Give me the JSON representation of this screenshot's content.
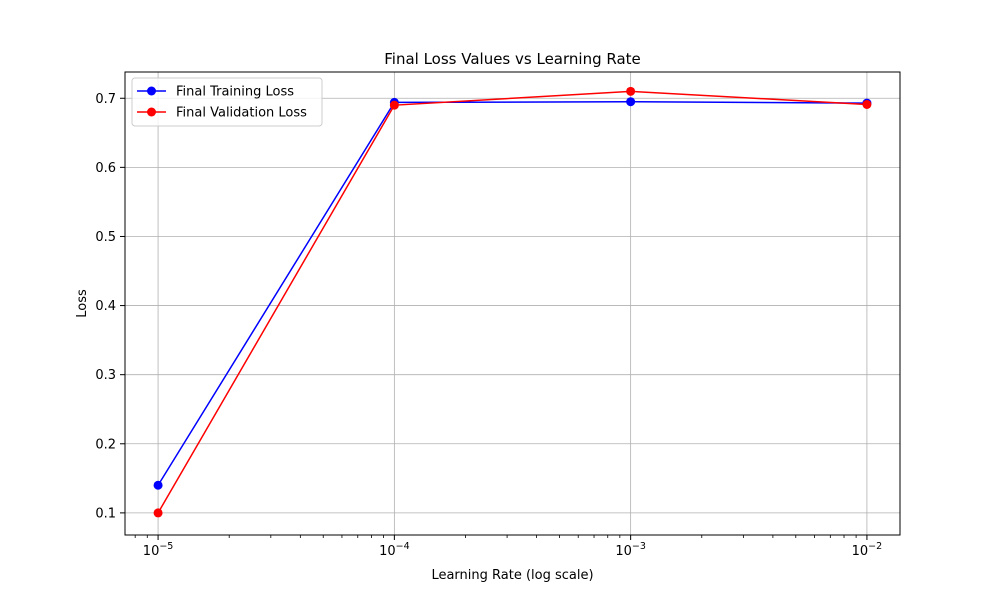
{
  "chart_data": {
    "type": "line",
    "title": "Final Loss Values vs Learning Rate",
    "xlabel": "Learning Rate (log scale)",
    "ylabel": "Loss",
    "xscale": "log",
    "x": [
      1e-05,
      0.0001,
      0.001,
      0.01
    ],
    "x_tick_labels": [
      {
        "base": "10",
        "exp": "−5"
      },
      {
        "base": "10",
        "exp": "−4"
      },
      {
        "base": "10",
        "exp": "−3"
      },
      {
        "base": "10",
        "exp": "−2"
      }
    ],
    "y_ticks": [
      0.1,
      0.2,
      0.3,
      0.4,
      0.5,
      0.6,
      0.7
    ],
    "y_tick_labels": [
      "0.1",
      "0.2",
      "0.3",
      "0.4",
      "0.5",
      "0.6",
      "0.7"
    ],
    "ylim": [
      0.068,
      0.738
    ],
    "xlim_log10": [
      -5.14,
      -1.86
    ],
    "grid": true,
    "legend_position": "top-left",
    "series": [
      {
        "name": "Final Training Loss",
        "color": "#0000ff",
        "values": [
          0.14,
          0.694,
          0.695,
          0.693
        ]
      },
      {
        "name": "Final Validation Loss",
        "color": "#ff0000",
        "values": [
          0.1,
          0.69,
          0.71,
          0.691
        ]
      }
    ]
  }
}
